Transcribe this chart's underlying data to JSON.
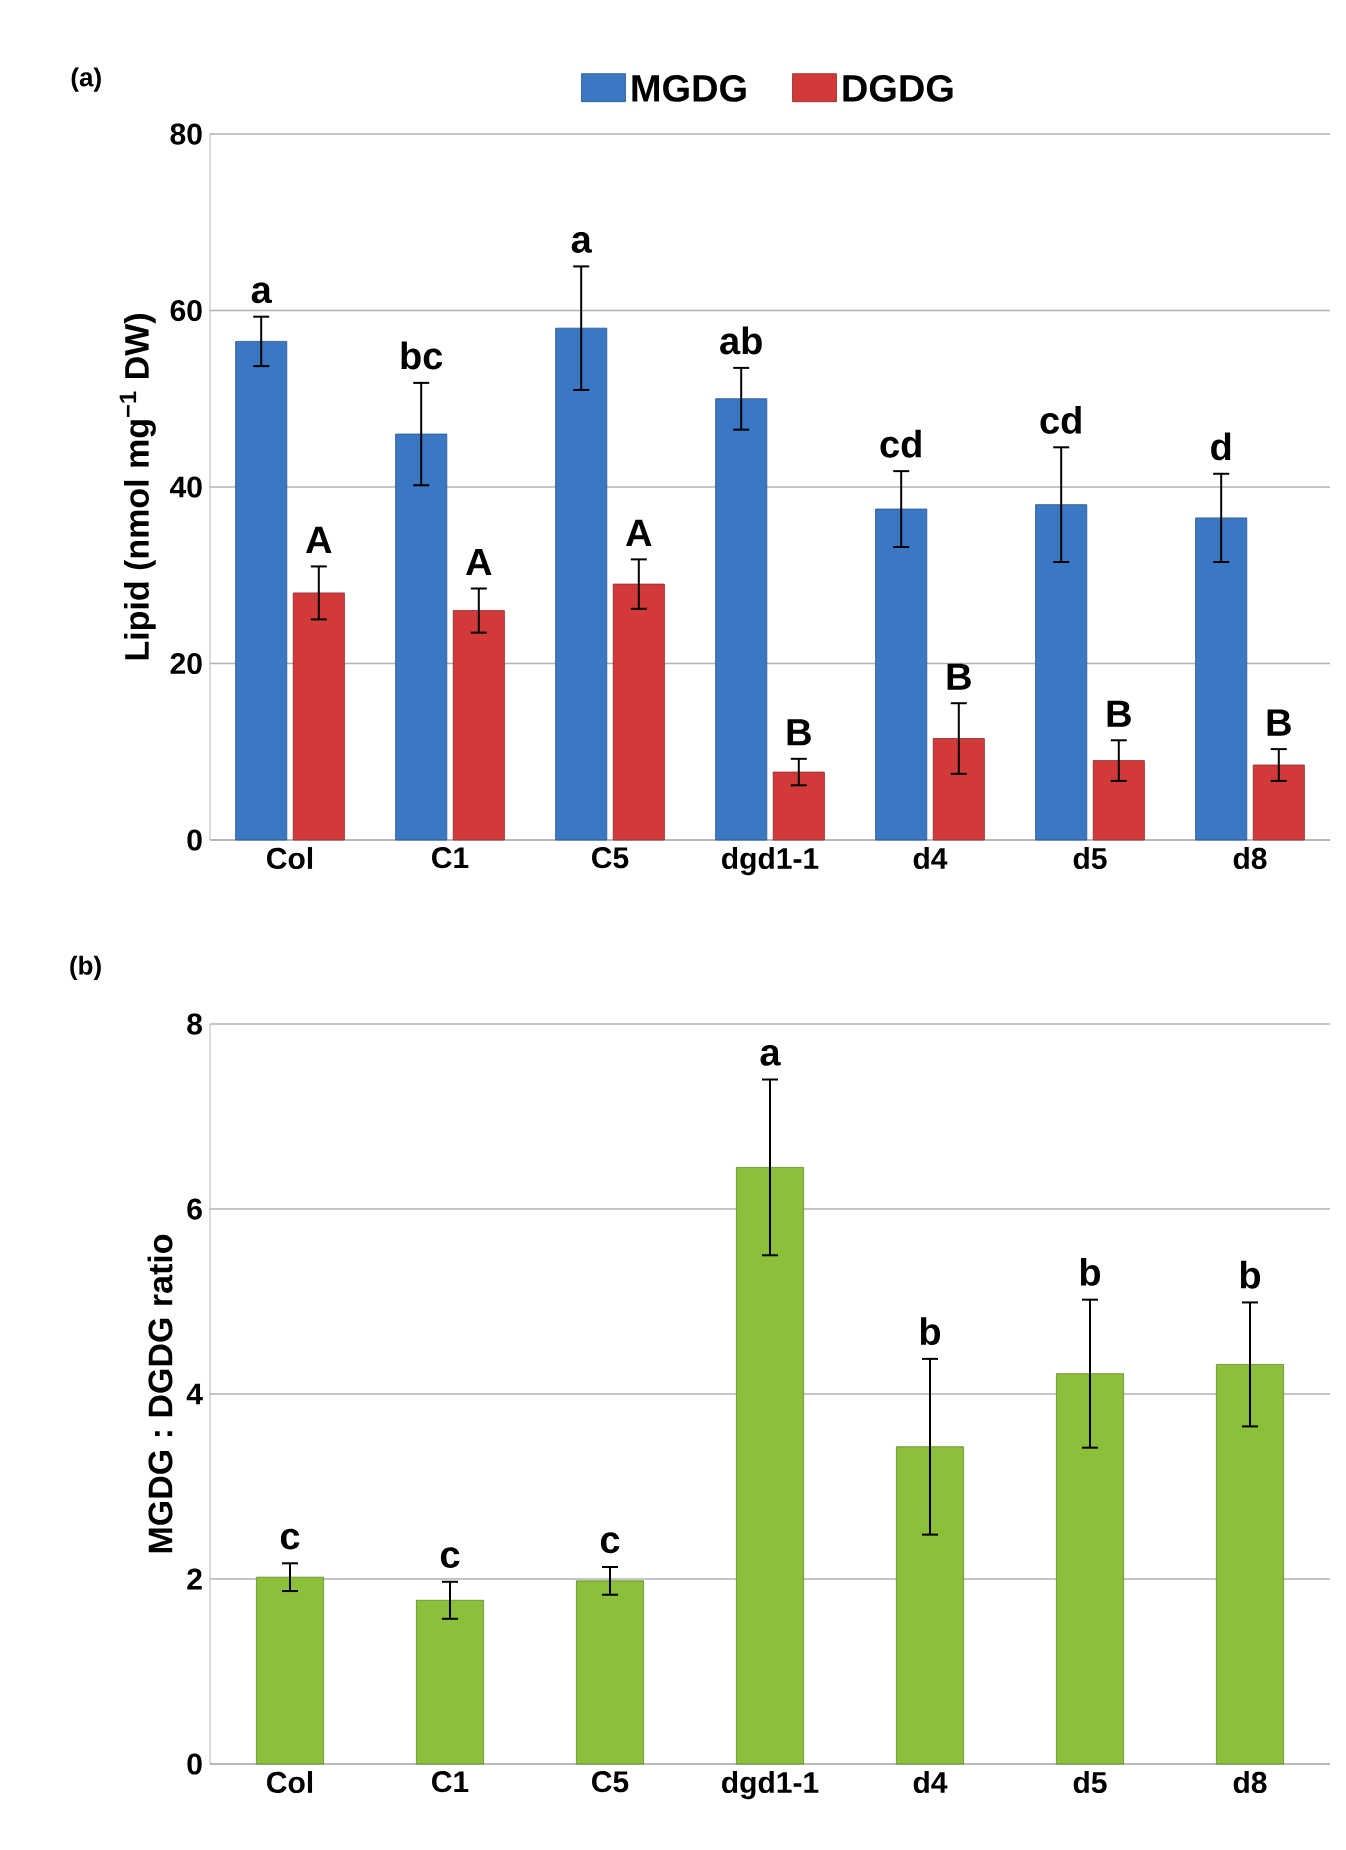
{
  "chart_data": [
    {
      "type": "bar",
      "ylabel": "Lipid (nmol mg$^{−1}$ DW)",
      "categories": [
        "Col",
        "C1",
        "C5",
        "dgd1-1",
        "d4",
        "d5",
        "d8"
      ],
      "series": [
        {
          "name": "MGDG",
          "color": "#3a78c4",
          "values": [
            56.5,
            46,
            58,
            50,
            37.5,
            38,
            36.5
          ],
          "errors": [
            2.8,
            5.8,
            7,
            3.5,
            4.3,
            6.5,
            5
          ]
        },
        {
          "name": "DGDG",
          "color": "#d23a3a",
          "values": [
            28,
            26,
            29,
            7.7,
            11.5,
            9,
            8.5
          ],
          "errors": [
            3,
            2.5,
            2.8,
            1.5,
            4,
            2.3,
            1.8
          ]
        }
      ],
      "ylim": [
        0,
        80
      ],
      "yticks": [
        0,
        20,
        40,
        60,
        80
      ],
      "grid": "y",
      "legend": "top",
      "annotations": [
        "(a)",
        {
          "text": "a",
          "x": "Col",
          "y": 56.5
        },
        {
          "text": "bc",
          "x": "C1",
          "y": 46
        },
        {
          "text": "a",
          "x": "C5",
          "y": 58
        },
        {
          "text": "ab",
          "x": "dgd1-1",
          "y": 50
        },
        {
          "text": "cd",
          "x": "d4",
          "y": 37.5
        },
        {
          "text": "cd",
          "x": "d5",
          "y": 38
        },
        {
          "text": "d",
          "x": "d8",
          "y": 36.5
        },
        {
          "text": "A",
          "x": "Col",
          "y": 28
        },
        {
          "text": "A",
          "x": "C1",
          "y": 26
        },
        {
          "text": "A",
          "x": "C5",
          "y": 29
        },
        {
          "text": "B",
          "x": "dgd1-1",
          "y": 7.7
        },
        {
          "text": "B",
          "x": "d4",
          "y": 11.5
        },
        {
          "text": "B",
          "x": "d5",
          "y": 9
        },
        {
          "text": "B",
          "x": "d8",
          "y": 8.5
        }
      ]
    },
    {
      "type": "bar",
      "ylabel": "MGDG : DGDG ratio",
      "categories": [
        "Col",
        "C1",
        "C5",
        "dgd1-1",
        "d4",
        "d5",
        "d8"
      ],
      "series": [
        {
          "color": "#8cbf3a",
          "values": [
            2.02,
            1.77,
            1.98,
            6.45,
            3.43,
            4.22,
            4.32
          ],
          "errors": [
            0.15,
            0.2,
            0.15,
            0.95,
            0.95,
            0.8,
            0.67
          ]
        }
      ],
      "ylim": [
        0,
        8
      ],
      "yticks": [
        0,
        2,
        4,
        6,
        8
      ],
      "grid": "y",
      "annotations": [
        "(b)",
        {
          "text": "c",
          "x": "Col",
          "y": 2.02
        },
        {
          "text": "c",
          "x": "C1",
          "y": 1.77
        },
        {
          "text": "c",
          "x": "C5",
          "y": 1.98
        },
        {
          "text": "a",
          "x": "dgd1-1",
          "y": 6.45
        },
        {
          "text": "b",
          "x": "d4",
          "y": 3.43
        },
        {
          "text": "b",
          "x": "d5",
          "y": 4.22
        },
        {
          "text": "b",
          "x": "d8",
          "y": 4.32
        }
      ]
    }
  ]
}
